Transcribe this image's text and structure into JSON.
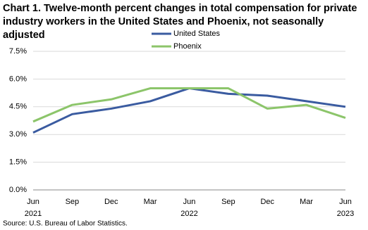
{
  "chart_data": {
    "type": "line",
    "title": "Chart 1. Twelve-month percent changes in total compensation for private industry workers in the United States and Phoenix, not seasonally adjusted",
    "categories": [
      "Jun",
      "Sep",
      "Dec",
      "Mar",
      "Jun",
      "Sep",
      "Dec",
      "Mar",
      "Jun"
    ],
    "category_years": [
      "2021",
      null,
      null,
      null,
      "2022",
      null,
      null,
      null,
      "2023"
    ],
    "series": [
      {
        "name": "United States",
        "color": "#3a5ba0",
        "values": [
          3.1,
          4.1,
          4.4,
          4.8,
          5.5,
          5.2,
          5.1,
          4.8,
          4.5
        ]
      },
      {
        "name": "Phoenix",
        "color": "#8cc56a",
        "values": [
          3.7,
          4.6,
          4.9,
          5.5,
          5.5,
          5.5,
          4.4,
          4.6,
          3.9
        ]
      }
    ],
    "ylim": [
      0,
      7.5
    ],
    "yticks": [
      {
        "value": 0,
        "label": "0.0%"
      },
      {
        "value": 1.5,
        "label": "1.5%"
      },
      {
        "value": 3,
        "label": "3.0%"
      },
      {
        "value": 4.5,
        "label": "4.5%"
      },
      {
        "value": 6,
        "label": "6.0%"
      },
      {
        "value": 7.5,
        "label": "7.5%"
      }
    ],
    "grid": true,
    "source": "Source: U.S. Bureau of Labor Statistics."
  }
}
